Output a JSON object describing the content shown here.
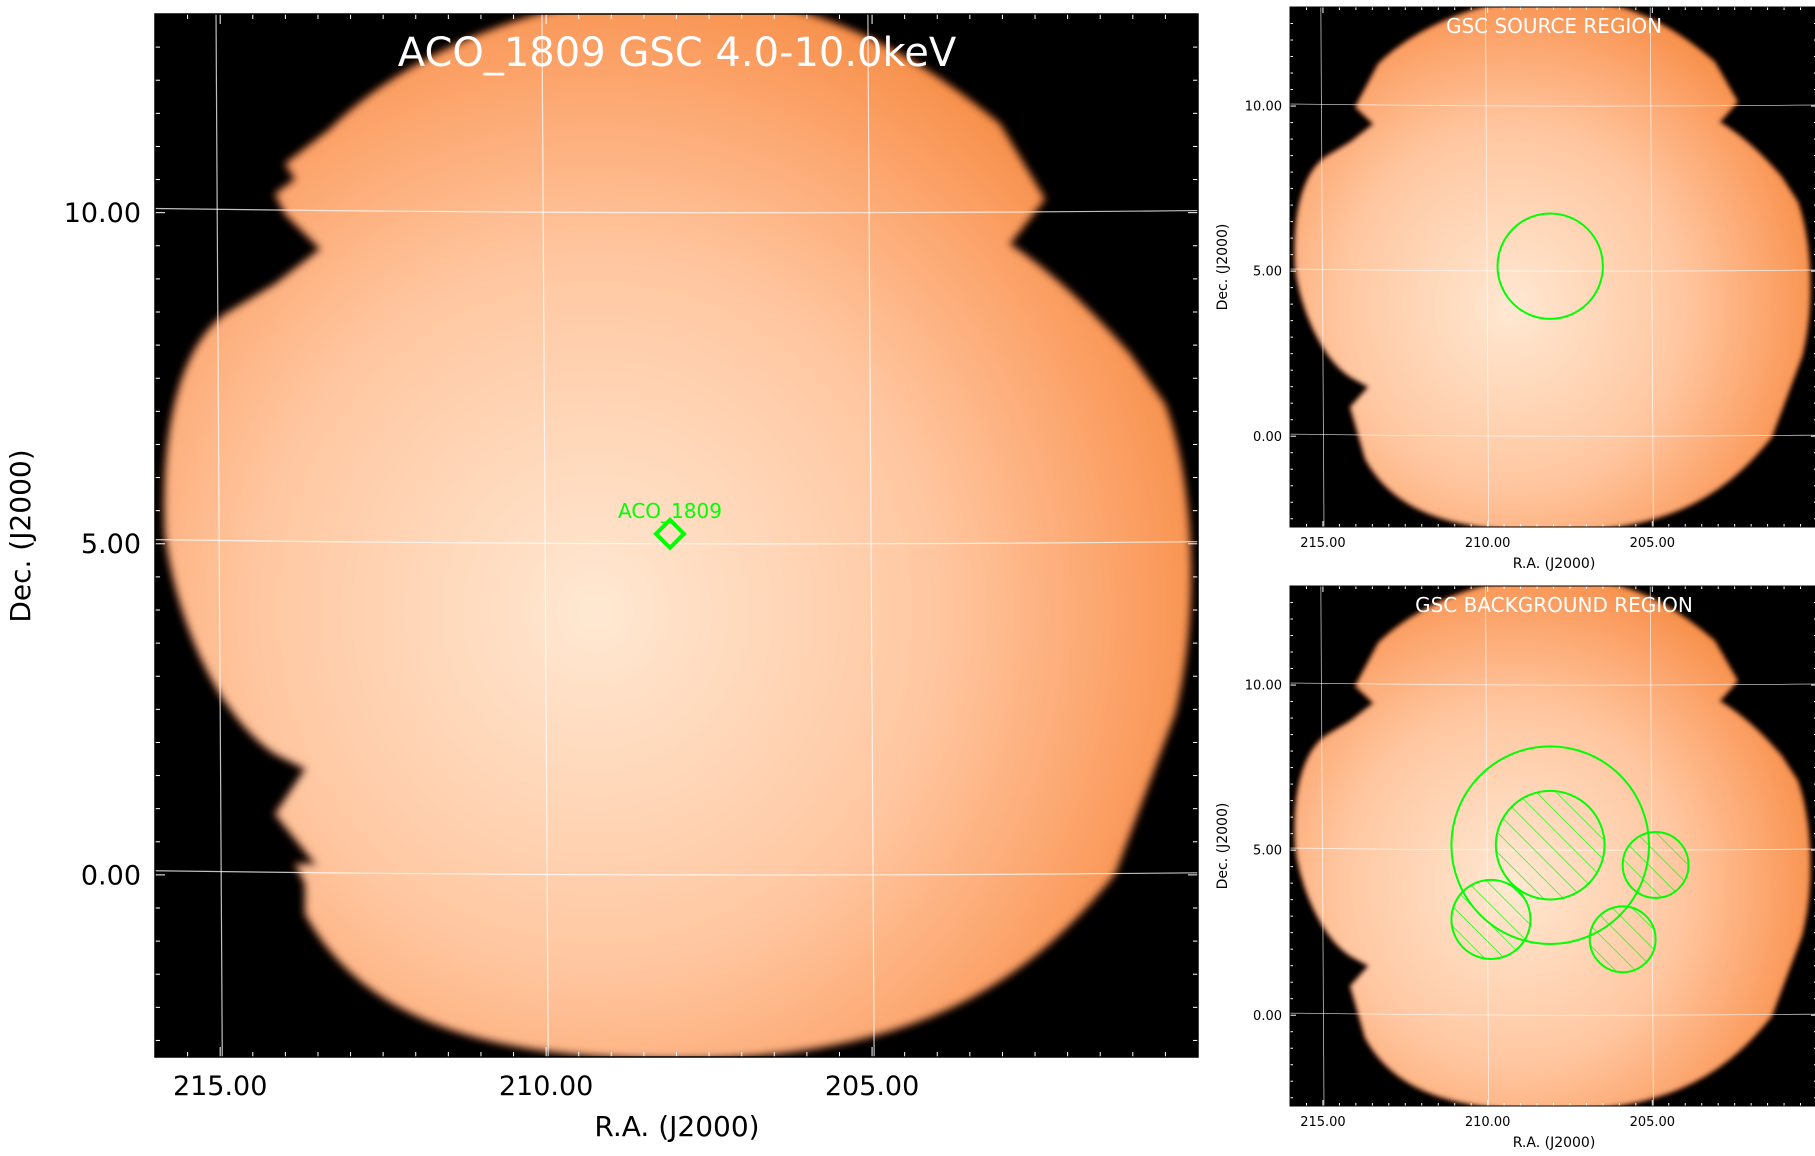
{
  "chart_data": [
    {
      "type": "heatmap",
      "title": "ACO_1809 GSC 4.0-10.0keV",
      "xlabel": "R.A. (J2000)",
      "ylabel": "Dec. (J2000)",
      "xlim": [
        216.0,
        200.0
      ],
      "ylim": [
        -2.75,
        13.0
      ],
      "xticks": [
        215.0,
        210.0,
        205.0
      ],
      "xtick_labels": [
        "215.00",
        "210.00",
        "205.00"
      ],
      "yticks": [
        0.0,
        5.0,
        10.0
      ],
      "ytick_labels": [
        "0.00",
        "5.00",
        "10.00"
      ],
      "grid": true,
      "colormap": "orange-heat",
      "markers": [
        {
          "shape": "diamond",
          "label": "ACO_1809",
          "ra": 208.1,
          "dec": 5.15
        }
      ]
    },
    {
      "type": "heatmap",
      "title": "GSC SOURCE REGION",
      "xlabel": "R.A. (J2000)",
      "ylabel": "Dec. (J2000)",
      "xlim": [
        216.0,
        200.0
      ],
      "ylim": [
        -2.75,
        13.0
      ],
      "xticks": [
        215.0,
        210.0,
        205.0
      ],
      "xtick_labels": [
        "215.00",
        "210.00",
        "205.00"
      ],
      "yticks": [
        0.0,
        5.0,
        10.0
      ],
      "ytick_labels": [
        "0.00",
        "5.00",
        "10.00"
      ],
      "grid": true,
      "regions": [
        {
          "shape": "circle",
          "ra": 208.1,
          "dec": 5.15,
          "radius": 1.6,
          "hatched": false
        }
      ]
    },
    {
      "type": "heatmap",
      "title": "GSC BACKGROUND REGION",
      "xlabel": "R.A. (J2000)",
      "ylabel": "Dec. (J2000)",
      "xlim": [
        216.0,
        200.0
      ],
      "ylim": [
        -2.75,
        13.0
      ],
      "xticks": [
        215.0,
        210.0,
        205.0
      ],
      "xtick_labels": [
        "215.00",
        "210.00",
        "205.00"
      ],
      "yticks": [
        0.0,
        5.0,
        10.0
      ],
      "ytick_labels": [
        "0.00",
        "5.00",
        "10.00"
      ],
      "grid": true,
      "regions": [
        {
          "shape": "circle",
          "ra": 208.1,
          "dec": 5.15,
          "radius": 3.0,
          "hatched": false
        },
        {
          "shape": "circle",
          "ra": 208.1,
          "dec": 5.15,
          "radius": 1.65,
          "hatched": true
        },
        {
          "shape": "circle",
          "ra": 204.9,
          "dec": 4.55,
          "radius": 1.0,
          "hatched": true
        },
        {
          "shape": "circle",
          "ra": 209.9,
          "dec": 2.9,
          "radius": 1.2,
          "hatched": true
        },
        {
          "shape": "circle",
          "ra": 205.9,
          "dec": 2.3,
          "radius": 1.0,
          "hatched": true
        }
      ]
    }
  ],
  "colors": {
    "region": "#00ff00",
    "title_text": "#ffffff",
    "grid": "#ffffff",
    "background": "#000000",
    "image_center": "#ffe8d2",
    "image_mid": "#ffb586",
    "image_edge": "#f7914c"
  }
}
